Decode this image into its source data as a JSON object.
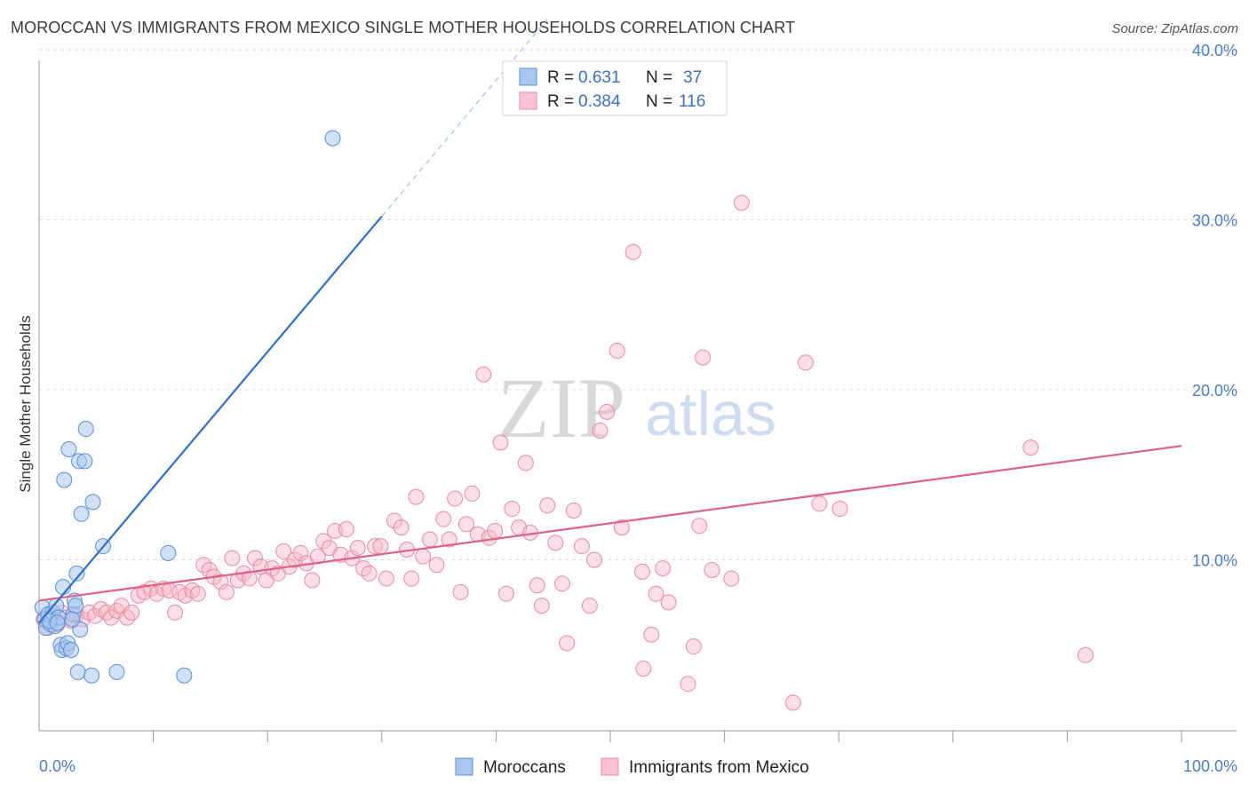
{
  "title": "MOROCCAN VS IMMIGRANTS FROM MEXICO SINGLE MOTHER HOUSEHOLDS CORRELATION CHART",
  "source": "Source: ZipAtlas.com",
  "watermark": {
    "zip": "ZIP",
    "atlas": "atlas"
  },
  "colors": {
    "blue_fill": "#a9c8f0",
    "blue_stroke": "#5b8fd6",
    "blue_line": "#2f6fd0",
    "pink_fill": "#f7b6c8",
    "pink_stroke": "#e88aa6",
    "pink_line": "#e0608a",
    "tick_text": "#4a7cc7",
    "grid": "#dcdcdc"
  },
  "legend_top": {
    "rows": [
      {
        "r_label": "R =",
        "r_value": "0.631",
        "n_label": "N =",
        "n_value": "37",
        "series": "Moroccans"
      },
      {
        "r_label": "R =",
        "r_value": "0.384",
        "n_label": "N =",
        "n_value": "116",
        "series": "Immigrants from Mexico"
      }
    ]
  },
  "legend_bottom": [
    "Moroccans",
    "Immigrants from Mexico"
  ],
  "chart_data": {
    "type": "scatter",
    "title": "MOROCCAN VS IMMIGRANTS FROM MEXICO SINGLE MOTHER HOUSEHOLDS CORRELATION CHART",
    "xlabel": "",
    "ylabel": "Single Mother Households",
    "xlim": [
      0,
      100
    ],
    "ylim": [
      0,
      42
    ],
    "x_tick_labels": [
      "0.0%",
      "100.0%"
    ],
    "y_ticks": [
      10,
      20,
      30,
      40
    ],
    "y_tick_labels": [
      "10.0%",
      "20.0%",
      "30.0%",
      "40.0%"
    ],
    "grid": true,
    "legend_position": "top-center",
    "series": [
      {
        "name": "Moroccans",
        "R": 0.631,
        "N": 37,
        "trend": {
          "x0": 0,
          "y0": 6.3,
          "x1": 30,
          "y1": 30.2,
          "dashed_to_x": 44.5,
          "dashed_to_y": 41.8
        },
        "points": [
          [
            0.3,
            7.2
          ],
          [
            0.5,
            6.5
          ],
          [
            0.6,
            6.0
          ],
          [
            0.8,
            6.8
          ],
          [
            1.0,
            6.2
          ],
          [
            1.2,
            6.9
          ],
          [
            1.4,
            6.1
          ],
          [
            1.5,
            7.3
          ],
          [
            1.7,
            6.6
          ],
          [
            1.9,
            5.0
          ],
          [
            2.0,
            4.7
          ],
          [
            2.1,
            8.4
          ],
          [
            2.2,
            14.7
          ],
          [
            2.4,
            4.8
          ],
          [
            2.5,
            5.1
          ],
          [
            2.6,
            16.5
          ],
          [
            2.8,
            4.7
          ],
          [
            3.0,
            6.8
          ],
          [
            3.1,
            7.6
          ],
          [
            3.2,
            7.3
          ],
          [
            3.3,
            9.2
          ],
          [
            3.4,
            3.4
          ],
          [
            3.5,
            15.8
          ],
          [
            3.6,
            5.9
          ],
          [
            3.7,
            12.7
          ],
          [
            4.0,
            15.8
          ],
          [
            4.1,
            17.7
          ],
          [
            4.6,
            3.2
          ],
          [
            4.7,
            13.4
          ],
          [
            5.6,
            10.8
          ],
          [
            6.8,
            3.4
          ],
          [
            11.3,
            10.4
          ],
          [
            12.7,
            3.2
          ],
          [
            25.7,
            34.8
          ],
          [
            0.9,
            6.4
          ],
          [
            1.6,
            6.3
          ],
          [
            2.9,
            6.5
          ]
        ]
      },
      {
        "name": "Immigrants from Mexico",
        "R": 0.384,
        "N": 116,
        "trend": {
          "x0": 0,
          "y0": 7.6,
          "x1": 100,
          "y1": 16.7
        },
        "points": [
          [
            0.4,
            6.5
          ],
          [
            0.8,
            6.0
          ],
          [
            1.2,
            6.7
          ],
          [
            1.6,
            6.2
          ],
          [
            2.0,
            6.9
          ],
          [
            2.4,
            6.6
          ],
          [
            2.8,
            6.4
          ],
          [
            3.3,
            6.8
          ],
          [
            3.8,
            6.5
          ],
          [
            4.4,
            6.9
          ],
          [
            4.9,
            6.7
          ],
          [
            5.4,
            7.1
          ],
          [
            5.9,
            6.9
          ],
          [
            6.3,
            6.6
          ],
          [
            6.8,
            7.0
          ],
          [
            7.2,
            7.3
          ],
          [
            7.7,
            6.6
          ],
          [
            8.1,
            6.9
          ],
          [
            8.7,
            7.9
          ],
          [
            9.2,
            8.1
          ],
          [
            9.8,
            8.3
          ],
          [
            10.3,
            8.0
          ],
          [
            10.9,
            8.3
          ],
          [
            11.4,
            8.2
          ],
          [
            11.9,
            6.9
          ],
          [
            12.3,
            8.1
          ],
          [
            12.8,
            7.9
          ],
          [
            13.4,
            8.2
          ],
          [
            13.9,
            8.0
          ],
          [
            14.4,
            9.7
          ],
          [
            14.9,
            9.4
          ],
          [
            15.3,
            9.0
          ],
          [
            15.9,
            8.7
          ],
          [
            16.4,
            8.1
          ],
          [
            16.9,
            10.1
          ],
          [
            17.4,
            8.8
          ],
          [
            17.9,
            9.2
          ],
          [
            18.4,
            8.9
          ],
          [
            18.9,
            10.1
          ],
          [
            19.4,
            9.6
          ],
          [
            19.9,
            8.8
          ],
          [
            20.4,
            9.5
          ],
          [
            20.9,
            9.2
          ],
          [
            21.4,
            10.5
          ],
          [
            21.9,
            9.6
          ],
          [
            22.4,
            10.0
          ],
          [
            22.9,
            10.4
          ],
          [
            23.4,
            9.8
          ],
          [
            23.9,
            8.8
          ],
          [
            24.4,
            10.2
          ],
          [
            24.9,
            11.1
          ],
          [
            25.4,
            10.7
          ],
          [
            25.9,
            11.7
          ],
          [
            26.4,
            10.3
          ],
          [
            26.9,
            11.8
          ],
          [
            27.4,
            10.1
          ],
          [
            27.9,
            10.7
          ],
          [
            28.4,
            9.5
          ],
          [
            28.9,
            9.2
          ],
          [
            29.4,
            10.8
          ],
          [
            29.9,
            10.8
          ],
          [
            30.4,
            8.9
          ],
          [
            31.1,
            12.3
          ],
          [
            31.7,
            11.9
          ],
          [
            32.2,
            10.6
          ],
          [
            32.6,
            8.9
          ],
          [
            33.0,
            13.7
          ],
          [
            33.6,
            10.2
          ],
          [
            34.2,
            11.2
          ],
          [
            34.8,
            9.7
          ],
          [
            35.4,
            12.4
          ],
          [
            35.9,
            11.2
          ],
          [
            36.4,
            13.6
          ],
          [
            36.9,
            8.1
          ],
          [
            37.4,
            12.1
          ],
          [
            37.9,
            13.9
          ],
          [
            38.4,
            11.5
          ],
          [
            38.9,
            20.9
          ],
          [
            39.4,
            11.3
          ],
          [
            39.9,
            11.7
          ],
          [
            40.4,
            16.9
          ],
          [
            40.9,
            8.0
          ],
          [
            41.4,
            13.0
          ],
          [
            42.0,
            11.9
          ],
          [
            42.6,
            15.7
          ],
          [
            43.0,
            11.6
          ],
          [
            43.6,
            8.5
          ],
          [
            44.0,
            7.3
          ],
          [
            44.5,
            13.2
          ],
          [
            45.2,
            11.0
          ],
          [
            45.8,
            8.6
          ],
          [
            46.2,
            5.1
          ],
          [
            46.8,
            12.9
          ],
          [
            47.5,
            10.8
          ],
          [
            48.2,
            7.3
          ],
          [
            48.6,
            10.0
          ],
          [
            49.1,
            17.6
          ],
          [
            49.7,
            18.7
          ],
          [
            50.6,
            22.3
          ],
          [
            51.0,
            11.9
          ],
          [
            52.0,
            28.1
          ],
          [
            52.8,
            9.3
          ],
          [
            53.6,
            5.6
          ],
          [
            54.0,
            8.0
          ],
          [
            54.6,
            9.5
          ],
          [
            55.1,
            7.5
          ],
          [
            56.8,
            2.7
          ],
          [
            57.3,
            4.9
          ],
          [
            57.8,
            12.0
          ],
          [
            58.1,
            21.9
          ],
          [
            58.9,
            9.4
          ],
          [
            60.6,
            8.9
          ],
          [
            61.5,
            31.0
          ],
          [
            66.0,
            1.6
          ],
          [
            67.1,
            21.6
          ],
          [
            68.3,
            13.3
          ],
          [
            70.1,
            13.0
          ],
          [
            86.8,
            16.6
          ],
          [
            91.6,
            4.4
          ],
          [
            52.9,
            3.6
          ]
        ]
      }
    ]
  }
}
